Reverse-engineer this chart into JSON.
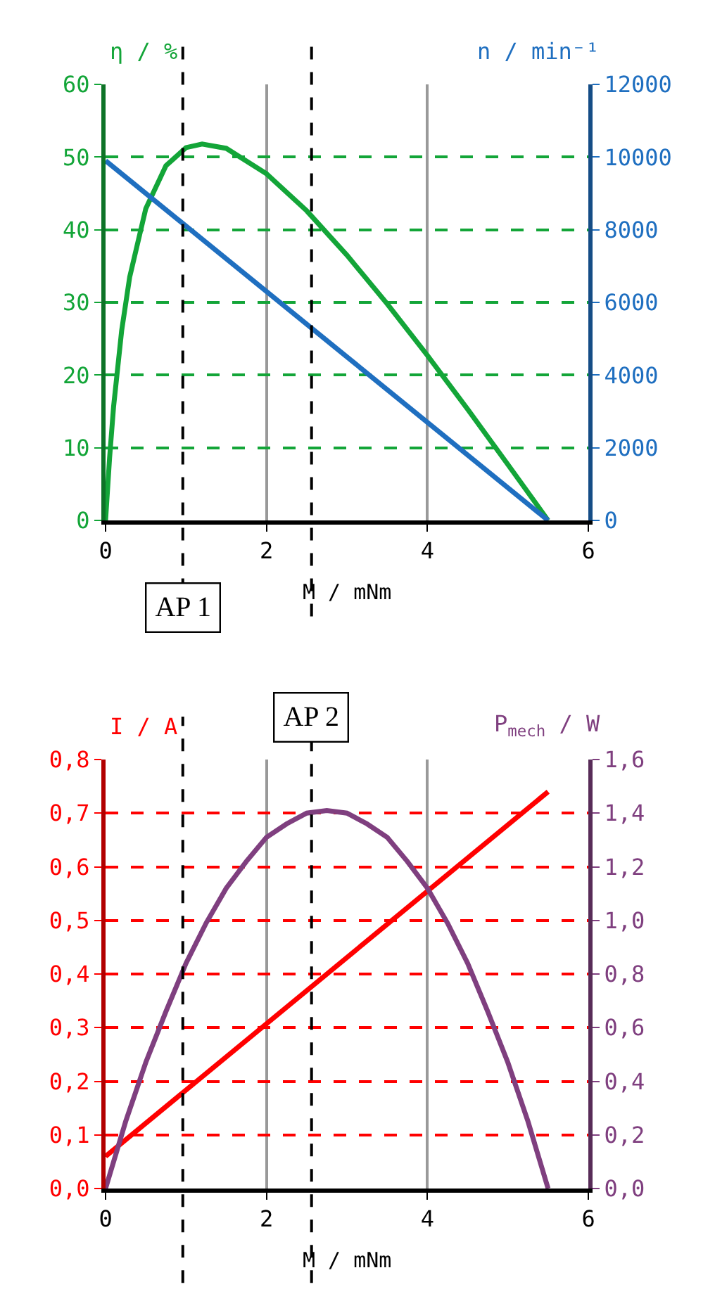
{
  "chart_data": [
    {
      "type": "line",
      "xlabel": "M / mNm",
      "ylabel": "η / %",
      "y2label": "n / min⁻¹",
      "xlim": [
        0,
        6
      ],
      "xticks": [
        0,
        2,
        4,
        6
      ],
      "ylim": [
        0,
        60
      ],
      "yticks": [
        0,
        10,
        20,
        30,
        40,
        50,
        60
      ],
      "y2lim": [
        0,
        12000
      ],
      "y2ticks": [
        0,
        2000,
        4000,
        6000,
        8000,
        10000,
        12000
      ],
      "grid": true,
      "series": [
        {
          "color": "#13a538",
          "x": [
            0,
            0.05,
            0.1,
            0.2,
            0.3,
            0.5,
            0.75,
            1.0,
            1.2,
            1.5,
            2.0,
            2.5,
            3.0,
            3.5,
            4.0,
            4.5,
            5.0,
            5.5
          ],
          "values": [
            0,
            8.6,
            15.7,
            26.1,
            33.5,
            42.9,
            48.8,
            51.3,
            51.8,
            51.2,
            47.7,
            42.6,
            36.5,
            29.8,
            22.7,
            15.3,
            7.7,
            0
          ]
        },
        {
          "color": "#1f6fc0",
          "axis": "y2",
          "x": [
            0,
            5.5
          ],
          "values": [
            9900,
            0
          ]
        }
      ],
      "ref_lines": [
        {
          "axis": "x",
          "value": 0.96,
          "label": "AP 1"
        },
        {
          "axis": "x",
          "value": 2.56
        }
      ]
    },
    {
      "type": "line",
      "xlabel": "M / mNm",
      "ylabel": "I / A",
      "y2label": "P$_{mech}$ / W",
      "xlim": [
        0,
        6
      ],
      "xticks": [
        0,
        2,
        4,
        6
      ],
      "ylim": [
        0,
        0.8
      ],
      "yticks": [
        {
          "value": 0,
          "label": "0,0"
        },
        {
          "value": 0.1,
          "label": "0,1"
        },
        {
          "value": 0.2,
          "label": "0,2"
        },
        {
          "value": 0.3,
          "label": "0,3"
        },
        {
          "value": 0.4,
          "label": "0,4"
        },
        {
          "value": 0.5,
          "label": "0,5"
        },
        {
          "value": 0.6,
          "label": "0,6"
        },
        {
          "value": 0.7,
          "label": "0,7"
        },
        {
          "value": 0.8,
          "label": "0,8"
        }
      ],
      "y2lim": [
        0,
        1.6
      ],
      "y2ticks": [
        {
          "value": 0,
          "label": "0,0"
        },
        {
          "value": 0.2,
          "label": "0,2"
        },
        {
          "value": 0.4,
          "label": "0,4"
        },
        {
          "value": 0.6,
          "label": "0,6"
        },
        {
          "value": 0.8,
          "label": "0,8"
        },
        {
          "value": 1.0,
          "label": "1,0"
        },
        {
          "value": 1.2,
          "label": "1,2"
        },
        {
          "value": 1.4,
          "label": "1,4"
        },
        {
          "value": 1.6,
          "label": "1,6"
        }
      ],
      "grid": true,
      "series": [
        {
          "color": "#7f3f7f",
          "axis": "y2",
          "x": [
            0,
            0.25,
            0.5,
            0.75,
            1.0,
            1.25,
            1.5,
            1.75,
            2.0,
            2.25,
            2.5,
            2.75,
            3.0,
            3.25,
            3.5,
            3.75,
            4.0,
            4.25,
            4.5,
            4.75,
            5.0,
            5.25,
            5.5
          ],
          "values": [
            0,
            0.25,
            0.47,
            0.66,
            0.84,
            0.99,
            1.12,
            1.22,
            1.31,
            1.36,
            1.4,
            1.41,
            1.4,
            1.36,
            1.31,
            1.22,
            1.12,
            0.99,
            0.84,
            0.66,
            0.47,
            0.25,
            0
          ]
        },
        {
          "color": "#ff0000",
          "x": [
            0,
            5.5
          ],
          "values": [
            0.06,
            0.74
          ]
        }
      ],
      "ref_lines": [
        {
          "axis": "x",
          "value": 0.96
        },
        {
          "axis": "x",
          "value": 2.56,
          "label": "AP 2"
        }
      ]
    }
  ]
}
